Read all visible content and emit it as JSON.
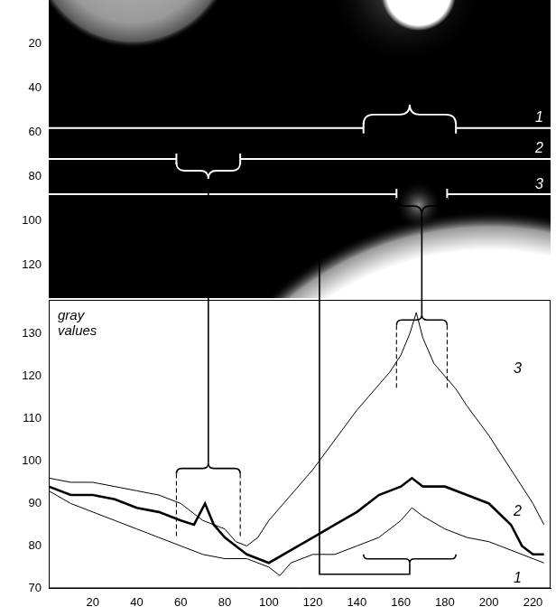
{
  "chart_data": {
    "type": "line",
    "y_label": "gray values",
    "xlim": [
      0,
      228
    ],
    "xticks": [
      20,
      40,
      60,
      80,
      100,
      120,
      140,
      160,
      180,
      200,
      220
    ],
    "ylim": [
      70,
      138
    ],
    "yticks": [
      70,
      80,
      90,
      100,
      110,
      120,
      130
    ],
    "grid": false,
    "series": [
      {
        "name": "1",
        "color": "#000000",
        "x": [
          0,
          10,
          20,
          30,
          40,
          50,
          60,
          70,
          80,
          90,
          100,
          105,
          110,
          120,
          130,
          140,
          150,
          155,
          160,
          165,
          170,
          180,
          190,
          200,
          210,
          220,
          225
        ],
        "values": [
          93,
          90,
          88,
          86,
          84,
          82,
          80,
          78,
          77,
          77,
          75,
          73,
          76,
          78,
          78,
          80,
          82,
          84,
          86,
          89,
          87,
          84,
          82,
          81,
          79,
          77,
          76
        ]
      },
      {
        "name": "2",
        "color": "#000000",
        "x": [
          0,
          10,
          20,
          30,
          40,
          50,
          60,
          66,
          71,
          75,
          80,
          85,
          90,
          95,
          100,
          110,
          120,
          130,
          140,
          150,
          160,
          165,
          170,
          180,
          190,
          200,
          210,
          215,
          220,
          225
        ],
        "values": [
          94,
          92,
          92,
          91,
          89,
          88,
          86,
          85,
          90,
          85,
          82,
          80,
          78,
          77,
          76,
          79,
          82,
          85,
          88,
          92,
          94,
          96,
          94,
          94,
          92,
          90,
          85,
          80,
          78,
          78
        ]
      },
      {
        "name": "3",
        "color": "#000000",
        "x": [
          0,
          10,
          20,
          30,
          40,
          50,
          60,
          70,
          80,
          85,
          90,
          95,
          100,
          110,
          120,
          130,
          140,
          150,
          155,
          160,
          164,
          167,
          170,
          175,
          180,
          185,
          190,
          200,
          210,
          220,
          225
        ],
        "values": [
          96,
          95,
          95,
          94,
          93,
          92,
          90,
          86,
          84,
          81,
          80,
          82,
          86,
          92,
          98,
          105,
          112,
          118,
          121,
          125,
          130,
          135,
          129,
          123,
          120,
          117,
          113,
          106,
          98,
          90,
          85
        ]
      }
    ]
  },
  "image": {
    "ylim": [
      0,
      135
    ],
    "yticks": [
      20,
      40,
      60,
      80,
      100,
      120
    ],
    "profiles": [
      {
        "name": "1",
        "row": 58,
        "gap": [
          143,
          185
        ]
      },
      {
        "name": "2",
        "row": 72,
        "gap": [
          58,
          87
        ]
      },
      {
        "name": "3",
        "row": 88,
        "gap": [
          158,
          181
        ]
      }
    ]
  }
}
